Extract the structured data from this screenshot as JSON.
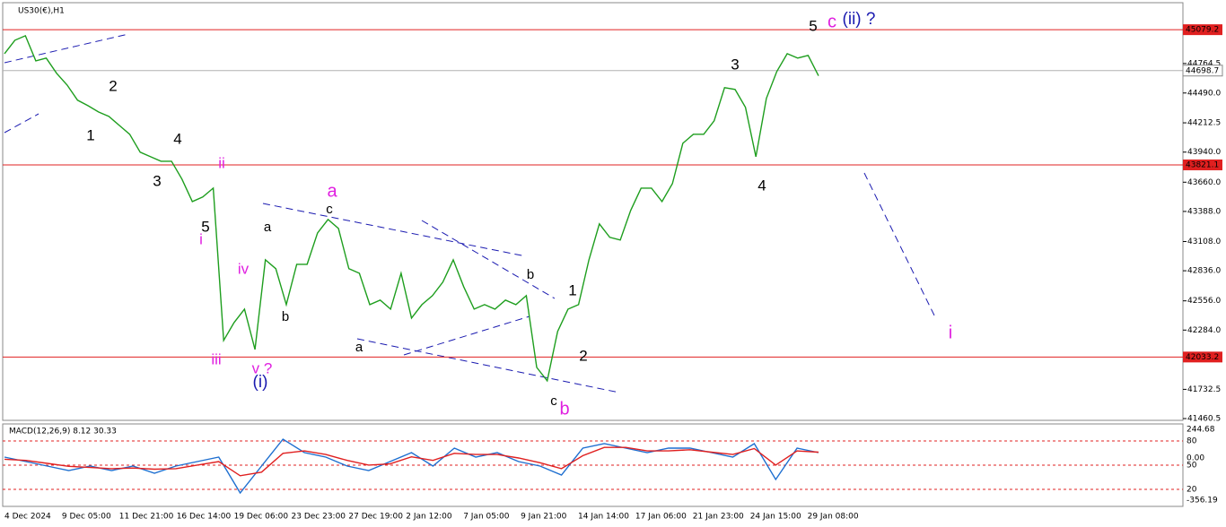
{
  "chart_data": [
    {
      "type": "line",
      "title": "US30(€),H1",
      "color": "#1e9e1e",
      "values": [
        44856,
        44981,
        45023,
        44789,
        44815,
        44673,
        44564,
        44423,
        44372,
        44314,
        44272,
        44189,
        44106,
        43939,
        43897,
        43855,
        43855,
        43689,
        43480,
        43522,
        43605,
        42188,
        42354,
        42479,
        42104,
        42938,
        42855,
        42521,
        42896,
        42896,
        43188,
        43313,
        43230,
        42855,
        42813,
        42521,
        42563,
        42479,
        42813,
        42396,
        42521,
        42604,
        42730,
        42938,
        42688,
        42479,
        42521,
        42479,
        42563,
        42521,
        42604,
        41937,
        41812,
        42271,
        42479,
        42521,
        42938,
        43272,
        43147,
        43122,
        43397,
        43605,
        43605,
        43480,
        43647,
        44022,
        44106,
        44106,
        44231,
        44540,
        44523,
        44356,
        43897,
        44440,
        44690,
        44856,
        44815,
        44840,
        44650
      ],
      "ylim": [
        41444,
        45172
      ],
      "yticks": [
        44764.5,
        {
          "value": 44490,
          "label": "44490.0"
        },
        44212.5,
        {
          "value": 43940,
          "label": "43940.0"
        },
        {
          "value": 43660,
          "label": "43660.0"
        },
        {
          "value": 43388,
          "label": "43388.0"
        },
        {
          "value": 43108,
          "label": "43108.0"
        },
        {
          "value": 42836,
          "label": "42836.0"
        },
        {
          "value": 42556,
          "label": "42556.0"
        },
        {
          "value": 42284,
          "label": "42284.0"
        },
        41732.5,
        41460.5
      ],
      "levels": [
        45079.2,
        43821.1,
        42033.2
      ],
      "level_color": "#e02020",
      "current_price": 44698.7,
      "x_labels": [
        "4 Dec 2024",
        "9 Dec 05:00",
        "11 Dec 21:00",
        "16 Dec 14:00",
        "19 Dec 06:00",
        "23 Dec 23:00",
        "27 Dec 19:00",
        "2 Jan 12:00",
        "7 Jan 05:00",
        "9 Jan 21:00",
        "14 Jan 14:00",
        "17 Jan 06:00",
        "21 Jan 23:00",
        "24 Jan 15:00",
        "29 Jan 08:00"
      ],
      "annotations": [
        {
          "text": "1",
          "color": "#000000"
        },
        {
          "text": "2",
          "color": "#000000"
        },
        {
          "text": "3",
          "color": "#000000"
        },
        {
          "text": "4",
          "color": "#000000"
        },
        {
          "text": "5",
          "color": "#000000"
        },
        {
          "text": "i",
          "color": "#e020e0"
        },
        {
          "text": "ii",
          "color": "#e020e0"
        },
        {
          "text": "iii",
          "color": "#e020e0"
        },
        {
          "text": "iv",
          "color": "#e020e0"
        },
        {
          "text": "v ?",
          "color": "#e020e0"
        },
        {
          "text": "(i)",
          "color": "#1a1ab0"
        },
        {
          "text": "a",
          "color": "#000000"
        },
        {
          "text": "b",
          "color": "#000000"
        },
        {
          "text": "a",
          "color": "#000000"
        },
        {
          "text": "c",
          "color": "#000000"
        },
        {
          "text": "a",
          "color": "#e020e0"
        },
        {
          "text": "b",
          "color": "#000000"
        },
        {
          "text": "c",
          "color": "#000000"
        },
        {
          "text": "b",
          "color": "#e020e0"
        },
        {
          "text": "1",
          "color": "#000000"
        },
        {
          "text": "2",
          "color": "#000000"
        },
        {
          "text": "3",
          "color": "#000000"
        },
        {
          "text": "4",
          "color": "#000000"
        },
        {
          "text": "5",
          "color": "#000000"
        },
        {
          "text": "c",
          "color": "#e020e0"
        },
        {
          "text": "(ii) ?",
          "color": "#1a1ab0"
        },
        {
          "text": "i",
          "color": "#e020e0"
        }
      ]
    },
    {
      "type": "line",
      "title": "MACD(12,26,9) 8.12 30.33",
      "series": [
        {
          "color": "#1e6fd0",
          "values": [
            8,
            -30,
            -68,
            -106,
            -68,
            -106,
            -68,
            -129,
            -68,
            -30,
            8,
            -296,
            -68,
            160,
            46,
            8,
            -68,
            -106,
            -30,
            46,
            -68,
            84,
            8,
            46,
            -30,
            -68,
            -144,
            84,
            122,
            84,
            46,
            84,
            84,
            46,
            8,
            122,
            -182,
            84,
            46
          ]
        },
        {
          "color": "#e02020",
          "values": [
            -10,
            -20,
            -45,
            -70,
            -80,
            -90,
            -85,
            -95,
            -90,
            -60,
            -30,
            -150,
            -120,
            40,
            60,
            30,
            -20,
            -60,
            -50,
            10,
            -20,
            40,
            30,
            30,
            0,
            -40,
            -90,
            20,
            90,
            90,
            60,
            60,
            70,
            50,
            30,
            80,
            -60,
            60,
            50
          ]
        }
      ],
      "ylim": [
        -410,
        289
      ],
      "scale_labels": [
        "244.68",
        "80",
        "0.00",
        "50",
        "20",
        "-356.19"
      ]
    }
  ]
}
